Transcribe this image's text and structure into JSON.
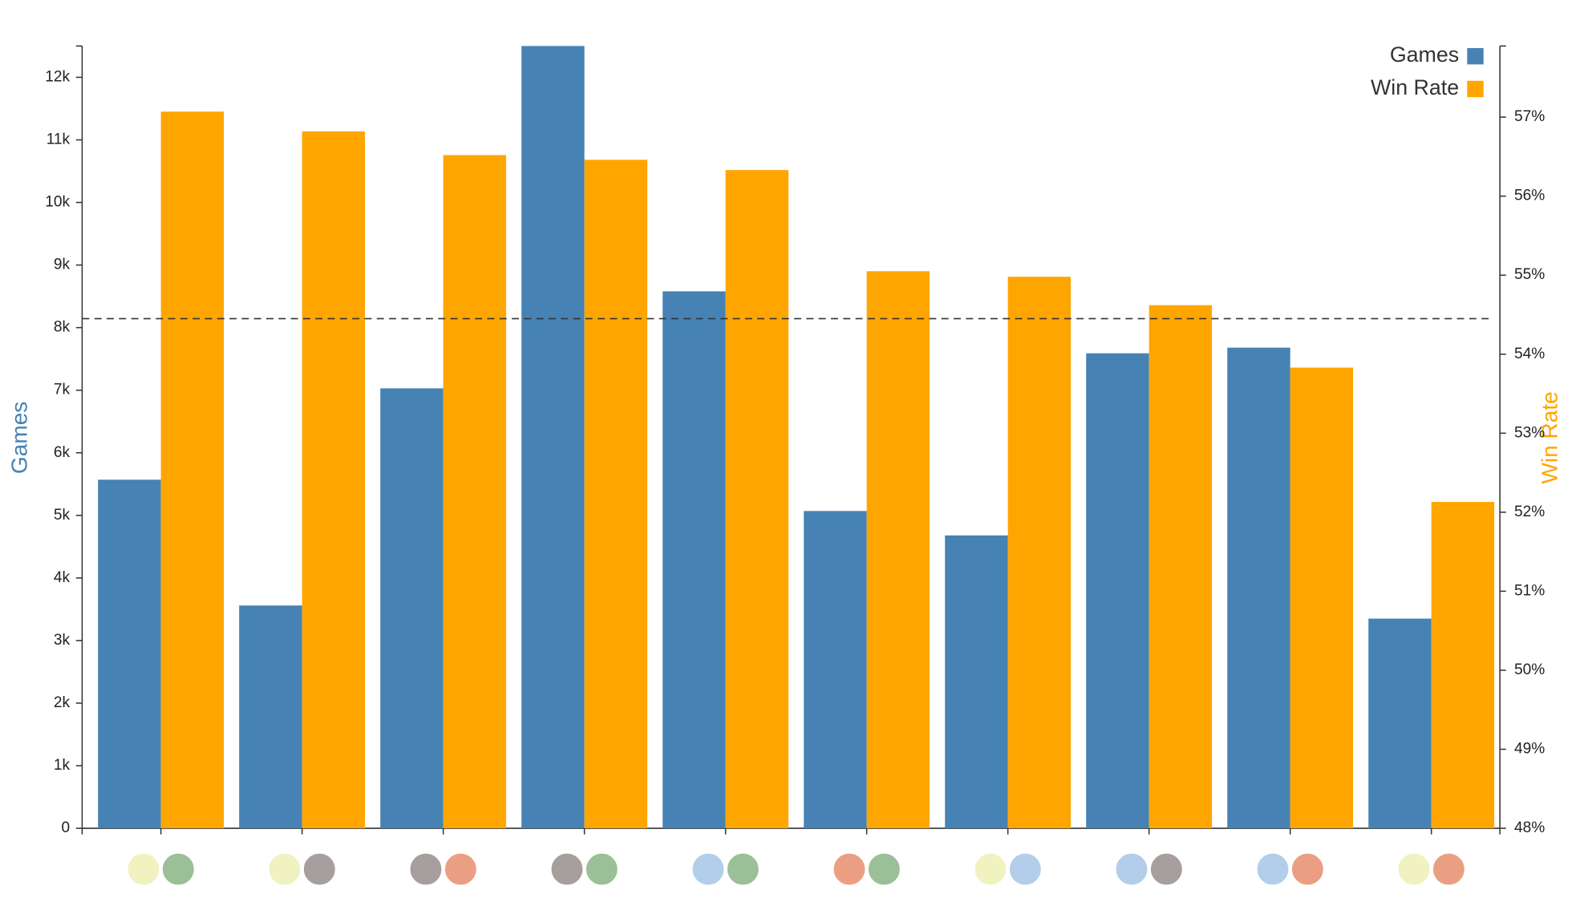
{
  "chart_data": {
    "type": "bar",
    "categories": [
      null,
      null,
      null,
      null,
      null,
      null,
      null,
      null,
      null,
      null
    ],
    "series": [
      {
        "name": "Games",
        "color": "#4682b4",
        "values": [
          5570,
          3560,
          7030,
          12500,
          8580,
          5070,
          4680,
          7590,
          7680,
          3350
        ]
      },
      {
        "name": "Win Rate",
        "color": "#ffa500",
        "axis": "y2",
        "values": [
          57.07,
          56.82,
          56.52,
          56.46,
          56.33,
          55.05,
          54.98,
          54.62,
          53.83,
          52.13
        ]
      }
    ],
    "ylabel": "Games",
    "y2label": "Win Rate",
    "ylim": [
      0,
      12500
    ],
    "yticks": [
      0,
      {
        "value": 1000,
        "label": "1k"
      },
      {
        "value": 2000,
        "label": "2k"
      },
      {
        "value": 3000,
        "label": "3k"
      },
      {
        "value": 4000,
        "label": "4k"
      },
      {
        "value": 5000,
        "label": "5k"
      },
      {
        "value": 6000,
        "label": "6k"
      },
      {
        "value": 7000,
        "label": "7k"
      },
      {
        "value": 8000,
        "label": "8k"
      },
      {
        "value": 9000,
        "label": "9k"
      },
      {
        "value": 10000,
        "label": "10k"
      },
      {
        "value": 11000,
        "label": "11k"
      },
      {
        "value": 12000,
        "label": "12k"
      }
    ],
    "y2lim": [
      48,
      57.9
    ],
    "y2ticks": [
      {
        "value": 48,
        "label": "48%"
      },
      {
        "value": 49,
        "label": "49%"
      },
      {
        "value": 50,
        "label": "50%"
      },
      {
        "value": 51,
        "label": "51%"
      },
      {
        "value": 52,
        "label": "52%"
      },
      {
        "value": 53,
        "label": "53%"
      },
      {
        "value": 54,
        "label": "54%"
      },
      {
        "value": 55,
        "label": "55%"
      },
      {
        "value": 56,
        "label": "56%"
      },
      {
        "value": 57,
        "label": "57%"
      }
    ],
    "reference_line": {
      "value": 54.45,
      "axis": "y2"
    },
    "legend": "top-right"
  }
}
